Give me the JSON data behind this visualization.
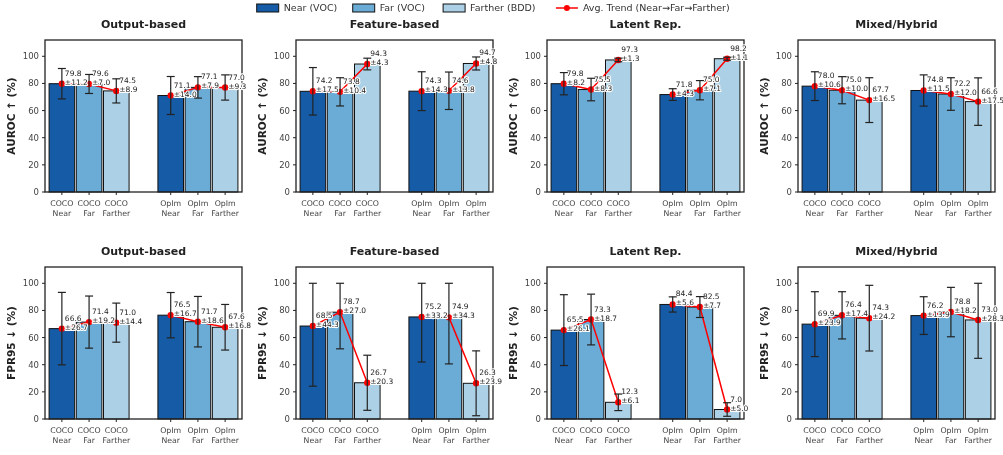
{
  "chart_data": [
    {
      "type": "bar",
      "title": "Output-based",
      "ylabel": "AUROC ↑ (%)",
      "categories": [
        "COCO\nNear",
        "COCO\nFar",
        "COCO\nFarther",
        null,
        "OpIm\nNear",
        "OpIm\nFar",
        "OpIm\nFarther"
      ],
      "ylim": [
        0,
        112
      ],
      "yticks": [
        0,
        20,
        40,
        60,
        80,
        100
      ],
      "legend": "top",
      "marker": "circle",
      "series": [
        {
          "name": "Near (VOC)",
          "color": "#155ba5",
          "values": [
            79.8,
            null,
            null,
            null,
            71.1,
            null,
            null
          ],
          "errors": [
            [
              68.6,
              91.0
            ],
            null,
            null,
            null,
            [
              57.1,
              85.1
            ],
            null,
            null
          ]
        },
        {
          "name": "Far (VOC)",
          "color": "#6aacd6",
          "values": [
            null,
            79.6,
            null,
            null,
            null,
            77.1,
            null
          ],
          "errors": [
            null,
            [
              72.6,
              86.6
            ],
            null,
            null,
            null,
            [
              69.2,
              85.0
            ],
            null
          ]
        },
        {
          "name": "Farther (BDD)",
          "color": "#acd0e6",
          "values": [
            null,
            null,
            74.5,
            null,
            null,
            null,
            77.0
          ],
          "errors": [
            null,
            null,
            [
              65.6,
              83.4
            ],
            null,
            null,
            null,
            [
              67.7,
              86.3
            ]
          ]
        },
        {
          "name": "Avg. Trend (Near→Far→Farther)",
          "type": "line",
          "color": "#ff0000",
          "values": [
            79.8,
            79.6,
            74.5,
            null,
            71.1,
            77.1,
            77.0
          ],
          "value_labels": [
            "79.8\n±11.2",
            "79.6\n±7.0",
            "74.5\n±8.9",
            null,
            "71.1\n±14.0",
            "77.1\n±7.9",
            "77.0\n±9.3"
          ]
        }
      ]
    },
    {
      "type": "bar",
      "title": "Feature-based",
      "ylabel": "AUROC ↑ (%)",
      "categories": [
        "COCO\nNear",
        "COCO\nFar",
        "COCO\nFarther",
        null,
        "OpIm\nNear",
        "OpIm\nFar",
        "OpIm\nFarther"
      ],
      "ylim": [
        0,
        112
      ],
      "yticks": [
        0,
        20,
        40,
        60,
        80,
        100
      ],
      "marker": "circle",
      "series": [
        {
          "color": "#155ba5",
          "values": [
            74.2,
            null,
            null,
            null,
            74.3,
            null,
            null
          ],
          "errors": [
            [
              56.7,
              91.7
            ],
            null,
            null,
            null,
            [
              60.0,
              88.6
            ],
            null,
            null
          ]
        },
        {
          "color": "#6aacd6",
          "values": [
            null,
            73.8,
            null,
            null,
            null,
            74.6,
            null
          ],
          "errors": [
            null,
            [
              63.4,
              84.2
            ],
            null,
            null,
            null,
            [
              60.8,
              88.4
            ],
            null
          ]
        },
        {
          "color": "#acd0e6",
          "values": [
            null,
            null,
            94.3,
            null,
            null,
            null,
            94.7
          ],
          "errors": [
            null,
            null,
            [
              90.0,
              98.6
            ],
            null,
            null,
            null,
            [
              89.9,
              99.5
            ]
          ]
        },
        {
          "type": "line",
          "color": "#ff0000",
          "values": [
            74.2,
            73.8,
            94.3,
            null,
            74.3,
            74.6,
            94.7
          ],
          "value_labels": [
            "74.2\n±17.5",
            "73.8\n±10.4",
            "94.3\n±4.3",
            null,
            "74.3\n±14.3",
            "74.6\n±13.8",
            "94.7\n±4.8"
          ]
        }
      ]
    },
    {
      "type": "bar",
      "title": "Latent Rep.",
      "ylabel": "AUROC ↑ (%)",
      "categories": [
        "COCO\nNear",
        "COCO\nFar",
        "COCO\nFarther",
        null,
        "OpIm\nNear",
        "OpIm\nFar",
        "OpIm\nFarther"
      ],
      "ylim": [
        0,
        112
      ],
      "yticks": [
        0,
        20,
        40,
        60,
        80,
        100
      ],
      "marker": "circle",
      "series": [
        {
          "color": "#155ba5",
          "values": [
            79.8,
            null,
            null,
            null,
            71.8,
            null,
            null
          ],
          "errors": [
            [
              71.6,
              88.0
            ],
            null,
            null,
            null,
            [
              67.5,
              76.1
            ],
            null,
            null
          ]
        },
        {
          "color": "#6aacd6",
          "values": [
            null,
            75.5,
            null,
            null,
            null,
            75.0,
            null
          ],
          "errors": [
            null,
            [
              67.2,
              83.8
            ],
            null,
            null,
            null,
            [
              67.9,
              82.1
            ],
            null
          ]
        },
        {
          "color": "#acd0e6",
          "values": [
            null,
            null,
            97.3,
            null,
            null,
            null,
            98.2
          ],
          "errors": [
            null,
            null,
            [
              96.0,
              98.6
            ],
            null,
            null,
            null,
            [
              97.1,
              99.3
            ]
          ]
        },
        {
          "type": "line",
          "color": "#ff0000",
          "values": [
            79.8,
            75.5,
            97.3,
            null,
            71.8,
            75.0,
            98.2
          ],
          "value_labels": [
            "79.8\n±8.2",
            "75.5\n±8.3",
            "97.3\n±1.3",
            null,
            "71.8\n±4.3",
            "75.0\n±7.1",
            "98.2\n±1.1"
          ]
        }
      ]
    },
    {
      "type": "bar",
      "title": "Mixed/Hybrid",
      "ylabel": "AUROC ↑ (%)",
      "categories": [
        "COCO\nNear",
        "COCO\nFar",
        "COCO\nFarther",
        null,
        "OpIm\nNear",
        "OpIm\nFar",
        "OpIm\nFarther"
      ],
      "ylim": [
        0,
        112
      ],
      "yticks": [
        0,
        20,
        40,
        60,
        80,
        100
      ],
      "marker": "circle",
      "series": [
        {
          "color": "#155ba5",
          "values": [
            78.0,
            null,
            null,
            null,
            74.8,
            null,
            null
          ],
          "errors": [
            [
              67.4,
              88.6
            ],
            null,
            null,
            null,
            [
              63.3,
              86.3
            ],
            null,
            null
          ]
        },
        {
          "color": "#6aacd6",
          "values": [
            null,
            75.0,
            null,
            null,
            null,
            72.2,
            null
          ],
          "errors": [
            null,
            [
              65.0,
              85.0
            ],
            null,
            null,
            null,
            [
              60.2,
              84.2
            ],
            null
          ]
        },
        {
          "color": "#acd0e6",
          "values": [
            null,
            null,
            67.7,
            null,
            null,
            null,
            66.6
          ],
          "errors": [
            null,
            null,
            [
              51.2,
              84.2
            ],
            null,
            null,
            null,
            [
              49.1,
              84.1
            ]
          ]
        },
        {
          "type": "line",
          "color": "#ff0000",
          "values": [
            78.0,
            75.0,
            67.7,
            null,
            74.8,
            72.2,
            66.6
          ],
          "value_labels": [
            "78.0\n±10.6",
            "75.0\n±10.0",
            "67.7\n±16.5",
            null,
            "74.8\n±11.5",
            "72.2\n±12.0",
            "66.6\n±17.5"
          ]
        }
      ]
    },
    {
      "type": "bar",
      "title": "Output-based",
      "ylabel": "FPR95 ↓ (%)",
      "categories": [
        "COCO\nNear",
        "COCO\nFar",
        "COCO\nFarther",
        null,
        "OpIm\nNear",
        "OpIm\nFar",
        "OpIm\nFarther"
      ],
      "ylim": [
        0,
        112
      ],
      "yticks": [
        0,
        20,
        40,
        60,
        80,
        100
      ],
      "marker": "circle",
      "series": [
        {
          "color": "#155ba5",
          "values": [
            66.6,
            null,
            null,
            null,
            76.5,
            null,
            null
          ],
          "errors": [
            [
              39.9,
              93.3
            ],
            null,
            null,
            null,
            [
              59.8,
              93.2
            ],
            null,
            null
          ]
        },
        {
          "color": "#6aacd6",
          "values": [
            null,
            71.4,
            null,
            null,
            null,
            71.7,
            null
          ],
          "errors": [
            null,
            [
              52.2,
              90.6
            ],
            null,
            null,
            null,
            [
              53.1,
              90.3
            ],
            null
          ]
        },
        {
          "color": "#acd0e6",
          "values": [
            null,
            null,
            71.0,
            null,
            null,
            null,
            67.6
          ],
          "errors": [
            null,
            null,
            [
              56.6,
              85.4
            ],
            null,
            null,
            null,
            [
              50.8,
              84.4
            ]
          ]
        },
        {
          "type": "line",
          "color": "#ff0000",
          "values": [
            66.6,
            71.4,
            71.0,
            null,
            76.5,
            71.7,
            67.6
          ],
          "value_labels": [
            "66.6\n±26.7",
            "71.4\n±19.2",
            "71.0\n±14.4",
            null,
            "76.5\n±16.7",
            "71.7\n±18.6",
            "67.6\n±16.8"
          ]
        }
      ]
    },
    {
      "type": "bar",
      "title": "Feature-based",
      "ylabel": "FPR95 ↓ (%)",
      "categories": [
        "COCO\nNear",
        "COCO\nFar",
        "COCO\nFarther",
        null,
        "OpIm\nNear",
        "OpIm\nFar",
        "OpIm\nFarther"
      ],
      "ylim": [
        0,
        112
      ],
      "yticks": [
        0,
        20,
        40,
        60,
        80,
        100
      ],
      "marker": "circle",
      "series": [
        {
          "color": "#155ba5",
          "values": [
            68.5,
            null,
            null,
            null,
            75.2,
            null,
            null
          ],
          "errors": [
            [
              24.2,
              100
            ],
            null,
            null,
            null,
            [
              42.0,
              100
            ],
            null,
            null
          ]
        },
        {
          "color": "#6aacd6",
          "values": [
            null,
            78.7,
            null,
            null,
            null,
            74.9,
            null
          ],
          "errors": [
            null,
            [
              51.7,
              100
            ],
            null,
            null,
            null,
            [
              40.6,
              100
            ],
            null
          ]
        },
        {
          "color": "#acd0e6",
          "values": [
            null,
            null,
            26.7,
            null,
            null,
            null,
            26.3
          ],
          "errors": [
            null,
            null,
            [
              6.4,
              47.0
            ],
            null,
            null,
            null,
            [
              2.4,
              50.2
            ]
          ]
        },
        {
          "type": "line",
          "color": "#ff0000",
          "values": [
            68.5,
            78.7,
            26.7,
            null,
            75.2,
            74.9,
            26.3
          ],
          "value_labels": [
            "68.5\n±44.3",
            "78.7\n±27.0",
            "26.7\n±20.3",
            null,
            "75.2\n±33.2",
            "74.9\n±34.3",
            "26.3\n±23.9"
          ]
        }
      ]
    },
    {
      "type": "bar",
      "title": "Latent Rep.",
      "ylabel": "FPR95 ↓ (%)",
      "categories": [
        "COCO\nNear",
        "COCO\nFar",
        "COCO\nFarther",
        null,
        "OpIm\nNear",
        "OpIm\nFar",
        "OpIm\nFarther"
      ],
      "ylim": [
        0,
        112
      ],
      "yticks": [
        0,
        20,
        40,
        60,
        80,
        100
      ],
      "marker": "circle",
      "series": [
        {
          "color": "#155ba5",
          "values": [
            65.5,
            null,
            null,
            null,
            84.4,
            null,
            null
          ],
          "errors": [
            [
              39.4,
              91.6
            ],
            null,
            null,
            null,
            [
              78.8,
              90.0
            ],
            null,
            null
          ]
        },
        {
          "color": "#6aacd6",
          "values": [
            null,
            73.3,
            null,
            null,
            null,
            82.5,
            null
          ],
          "errors": [
            null,
            [
              54.6,
              92.0
            ],
            null,
            null,
            null,
            [
              74.8,
              90.2
            ],
            null
          ]
        },
        {
          "color": "#acd0e6",
          "values": [
            null,
            null,
            12.3,
            null,
            null,
            null,
            7.0
          ],
          "errors": [
            null,
            null,
            [
              6.2,
              18.4
            ],
            null,
            null,
            null,
            [
              2.0,
              12.0
            ]
          ]
        },
        {
          "type": "line",
          "color": "#ff0000",
          "values": [
            65.5,
            73.3,
            12.3,
            null,
            84.4,
            82.5,
            7.0
          ],
          "value_labels": [
            "65.5\n±26.1",
            "73.3\n±18.7",
            "12.3\n±6.1",
            null,
            "84.4\n±5.6",
            "82.5\n±7.7",
            "7.0\n±5.0"
          ]
        }
      ]
    },
    {
      "type": "bar",
      "title": "Mixed/Hybrid",
      "ylabel": "FPR95 ↓ (%)",
      "categories": [
        "COCO\nNear",
        "COCO\nFar",
        "COCO\nFarther",
        null,
        "OpIm\nNear",
        "OpIm\nFar",
        "OpIm\nFarther"
      ],
      "ylim": [
        0,
        112
      ],
      "yticks": [
        0,
        20,
        40,
        60,
        80,
        100
      ],
      "marker": "circle",
      "series": [
        {
          "color": "#155ba5",
          "values": [
            69.9,
            null,
            null,
            null,
            76.2,
            null,
            null
          ],
          "errors": [
            [
              46.0,
              93.8
            ],
            null,
            null,
            null,
            [
              62.3,
              90.1
            ],
            null,
            null
          ]
        },
        {
          "color": "#6aacd6",
          "values": [
            null,
            76.4,
            null,
            null,
            null,
            78.8,
            null
          ],
          "errors": [
            null,
            [
              59.0,
              93.8
            ],
            null,
            null,
            null,
            [
              60.6,
              97.0
            ],
            null
          ]
        },
        {
          "color": "#acd0e6",
          "values": [
            null,
            null,
            74.3,
            null,
            null,
            null,
            73.0
          ],
          "errors": [
            null,
            null,
            [
              50.1,
              98.5
            ],
            null,
            null,
            null,
            [
              44.7,
              100
            ]
          ]
        },
        {
          "type": "line",
          "color": "#ff0000",
          "values": [
            69.9,
            76.4,
            74.3,
            null,
            76.2,
            78.8,
            73.0
          ],
          "value_labels": [
            "69.9\n±23.9",
            "76.4\n±17.4",
            "74.3\n±24.2",
            null,
            "76.2\n±13.9",
            "78.8\n±18.2",
            "73.0\n±28.3"
          ]
        }
      ]
    }
  ]
}
